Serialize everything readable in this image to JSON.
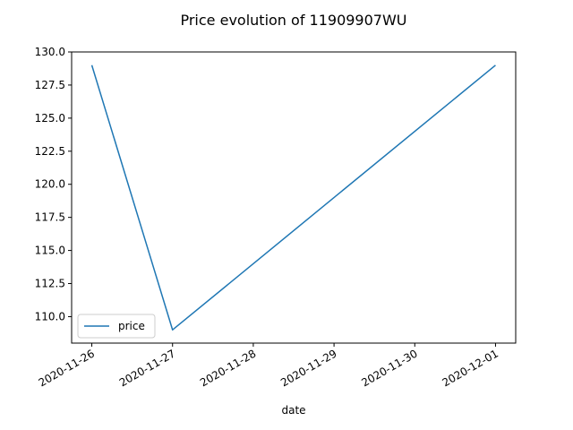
{
  "chart_data": {
    "type": "line",
    "title": "Price evolution of 11909907WU",
    "xlabel": "date",
    "ylabel": "",
    "x": [
      "2020-11-26",
      "2020-11-27",
      "2020-12-01"
    ],
    "series": [
      {
        "name": "price",
        "values": [
          129.0,
          109.0,
          129.0
        ],
        "color": "#1f77b4"
      }
    ],
    "x_ticks": [
      "2020-11-26",
      "2020-11-27",
      "2020-11-28",
      "2020-11-29",
      "2020-11-30",
      "2020-12-01"
    ],
    "y_ticks": [
      "110.0",
      "112.5",
      "115.0",
      "117.5",
      "120.0",
      "122.5",
      "125.0",
      "127.5",
      "130.0"
    ],
    "xlim": [
      "2020-11-25T18:00",
      "2020-12-01T06:00"
    ],
    "ylim": [
      108.0,
      130.0
    ],
    "grid": false,
    "legend": {
      "placement": "lower-left",
      "entries": [
        "price"
      ]
    }
  }
}
